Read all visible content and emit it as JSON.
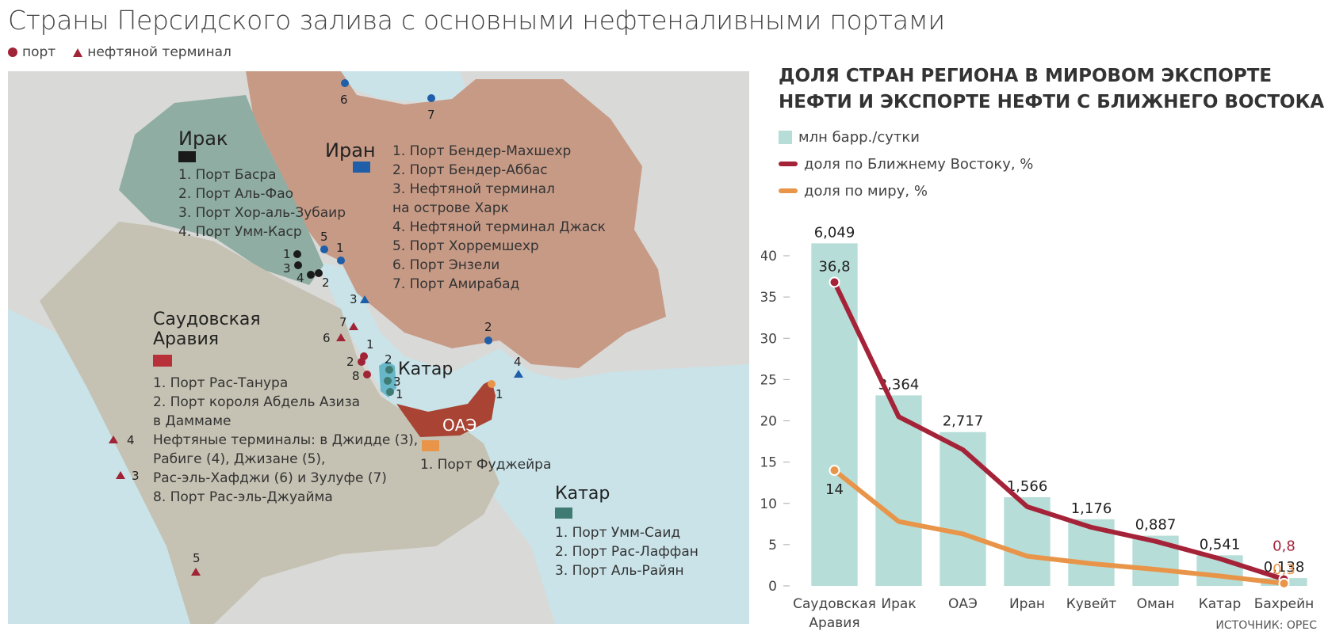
{
  "header": {
    "title": "Страны Персидского залива с основными нефтеналивными портами",
    "legend_port": "порт",
    "legend_terminal": "нефтяной терминал"
  },
  "map": {
    "iraq": {
      "name": "Ирак",
      "color": "#1a1a1a",
      "items": [
        "1. Порт Басра",
        "2. Порт Аль-Фао",
        "3. Порт Хор-аль-Зубаир",
        "4. Порт Умм-Каср"
      ]
    },
    "iran": {
      "name": "Иран",
      "color": "#1f5ea8",
      "items": [
        "1. Порт Бендер-Махшехр",
        "2. Порт Бендер-Аббас",
        "3. Нефтяной терминал",
        "на острове Харк",
        "4. Нефтяной терминал Джаск",
        "5. Порт Хорремшехр",
        "6. Порт Энзели",
        "7. Порт Амирабад"
      ]
    },
    "saudi": {
      "name_line1": "Саудовская",
      "name_line2": "Аравия",
      "color": "#b8303a",
      "items": [
        "1. Порт Рас-Танура",
        "2. Порт короля Абдель Азиза",
        "в Даммаме",
        "Нефтяные терминалы: в Джидде (3),",
        "Рабиге (4), Джизане (5),",
        "Рас-эль-Хафджи (6) и Зулуфе (7)",
        "8. Порт Рас-эль-Джуайма"
      ]
    },
    "qatar_label": "Катар",
    "uae": {
      "name": "ОАЭ",
      "color": "#e8954a",
      "items": [
        "1. Порт Фуджейра"
      ]
    },
    "qatar": {
      "name": "Катар",
      "color": "#3f7b72",
      "items": [
        "1. Порт Умм-Саид",
        "2. Порт Рас-Лаффан",
        "3. Порт Аль-Райян"
      ]
    },
    "markers": {
      "iran_6": "6",
      "iran_7": "7",
      "iran_5": "5",
      "iran_1": "1",
      "iran_3": "3",
      "iran_2": "2",
      "iran_4": "4",
      "iraq_1": "1",
      "iraq_3": "3",
      "iraq_4": "4",
      "iraq_2": "2",
      "saudi_7": "7",
      "saudi_6": "6",
      "saudi_1": "1",
      "saudi_2": "2",
      "saudi_8": "8",
      "saudi_4": "4",
      "saudi_3": "3",
      "saudi_5": "5",
      "qatar_2": "2",
      "qatar_3": "3",
      "qatar_1": "1",
      "uae_1": "1"
    }
  },
  "chart_data": {
    "type": "bar",
    "title_line1": "ДОЛЯ СТРАН РЕГИОНА В МИРОВОМ ЭКСПОРТЕ",
    "title_line2": "НЕФТИ И ЭКСПОРТЕ НЕФТИ С БЛИЖНЕГО ВОСТОКА",
    "categories": [
      "Саудовская Аравия",
      "Ирак",
      "ОАЭ",
      "Иран",
      "Кувейт",
      "Оман",
      "Катар",
      "Бахрейн"
    ],
    "category_lines": [
      [
        "Саудовская",
        "Аравия"
      ],
      [
        "Ирак"
      ],
      [
        "ОАЭ"
      ],
      [
        "Иран"
      ],
      [
        "Кувейт"
      ],
      [
        "Оман"
      ],
      [
        "Катар"
      ],
      [
        "Бахрейн"
      ]
    ],
    "series": [
      {
        "name": "млн барр./сутки",
        "kind": "bar",
        "color": "#b6ddd7",
        "values": [
          6.049,
          3.364,
          2.717,
          1.566,
          1.176,
          0.887,
          0.541,
          0.138
        ],
        "labels": [
          "6,049",
          "3,364",
          "2,717",
          "1,566",
          "1,176",
          "0,887",
          "0,541",
          "0,138"
        ]
      },
      {
        "name": "доля по Ближнему Востоку, %",
        "kind": "line",
        "color": "#a52339",
        "values": [
          36.8,
          20.5,
          16.5,
          9.6,
          7.1,
          5.4,
          3.3,
          0.8
        ],
        "labels": [
          "36,8",
          "",
          "",
          "",
          "",
          "",
          "",
          "0,8"
        ]
      },
      {
        "name": "доля по миру, %",
        "kind": "line",
        "color": "#e8954a",
        "values": [
          14,
          7.8,
          6.3,
          3.6,
          2.7,
          2.0,
          1.2,
          0.3
        ],
        "labels": [
          "14",
          "",
          "",
          "",
          "",
          "",
          "",
          "0,3"
        ]
      }
    ],
    "ylim": [
      0,
      40
    ],
    "yticks": [
      "0",
      "5",
      "10",
      "15",
      "20",
      "25",
      "30",
      "35",
      "40"
    ],
    "source": "ИСТОЧНИК: OPEC"
  }
}
